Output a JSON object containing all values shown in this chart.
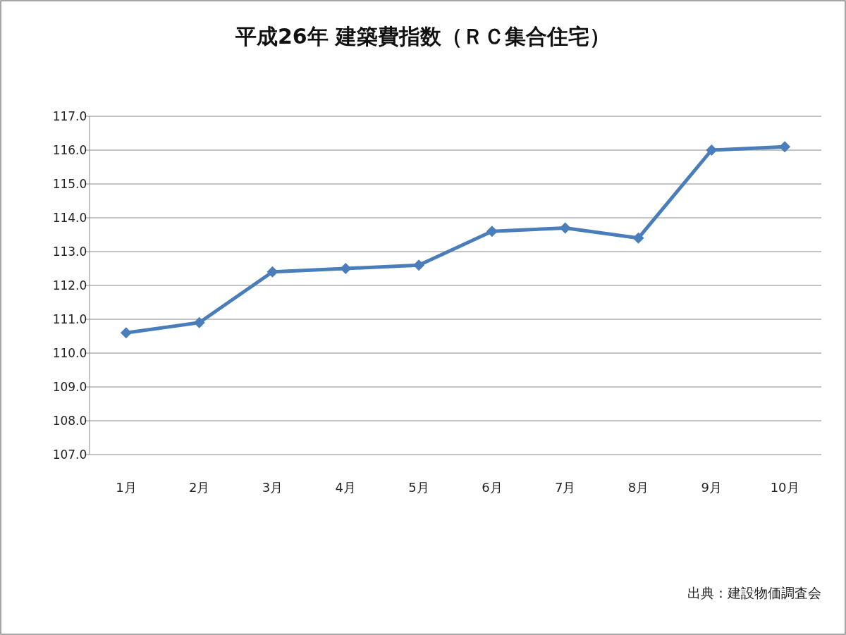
{
  "chart_data": {
    "type": "line",
    "title": "平成26年  建築費指数（ＲＣ集合住宅）",
    "categories": [
      "1月",
      "2月",
      "3月",
      "4月",
      "5月",
      "6月",
      "7月",
      "8月",
      "9月",
      "10月"
    ],
    "series": [
      {
        "color": "#4a7ebb",
        "values": [
          110.6,
          110.9,
          112.4,
          112.5,
          112.6,
          113.6,
          113.7,
          113.4,
          116.0,
          116.1
        ]
      }
    ],
    "ylim": [
      107,
      117
    ],
    "yticks": [
      {
        "value": 107,
        "label": "107.0"
      },
      {
        "value": 108,
        "label": "108.0"
      },
      {
        "value": 109,
        "label": "109.0"
      },
      {
        "value": 110,
        "label": "110.0"
      },
      {
        "value": 111,
        "label": "111.0"
      },
      {
        "value": 112,
        "label": "112.0"
      },
      {
        "value": 113,
        "label": "113.0"
      },
      {
        "value": 114,
        "label": "114.0"
      },
      {
        "value": 115,
        "label": "115.0"
      },
      {
        "value": 116,
        "label": "116.0"
      },
      {
        "value": 117,
        "label": "117.0"
      }
    ],
    "grid": "y",
    "marker": "diamond",
    "line_style": "solid",
    "annotations": [
      "出典：建設物価調査会"
    ]
  }
}
